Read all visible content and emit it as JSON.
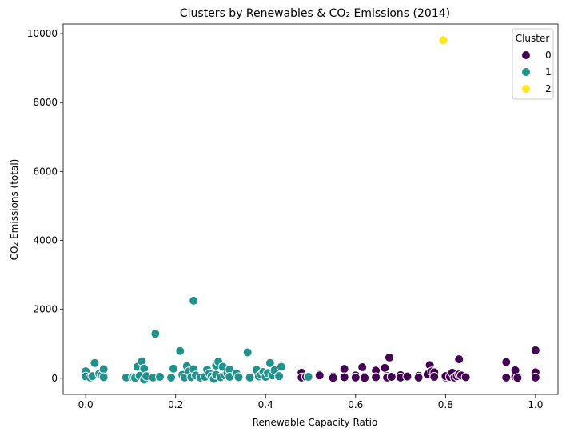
{
  "chart_data": {
    "type": "scatter",
    "title": "Clusters by Renewables & CO₂ Emissions (2014)",
    "xlabel": "Renewable Capacity Ratio",
    "ylabel": "CO₂ Emissions (total)",
    "xlim": [
      -0.05,
      1.05
    ],
    "ylim": [
      -470,
      10280
    ],
    "xticks": [
      0.0,
      0.2,
      0.4,
      0.6,
      0.8,
      1.0
    ],
    "xtick_labels": [
      "0.0",
      "0.2",
      "0.4",
      "0.6",
      "0.8",
      "1.0"
    ],
    "yticks": [
      0,
      2000,
      4000,
      6000,
      8000,
      10000
    ],
    "ytick_labels": [
      "0",
      "2000",
      "4000",
      "6000",
      "8000",
      "10000"
    ],
    "grid": false,
    "legend": {
      "title": "Cluster",
      "placement": "top-right",
      "entries": [
        "0",
        "1",
        "2"
      ]
    },
    "colors": {
      "0": "#440154",
      "1": "#21918c",
      "2": "#fde725"
    },
    "series": [
      {
        "name": "0",
        "points": [
          [
            0.48,
            160
          ],
          [
            0.48,
            20
          ],
          [
            0.49,
            40
          ],
          [
            0.52,
            110
          ],
          [
            0.52,
            80
          ],
          [
            0.55,
            50
          ],
          [
            0.55,
            10
          ],
          [
            0.575,
            270
          ],
          [
            0.575,
            30
          ],
          [
            0.6,
            80
          ],
          [
            0.6,
            20
          ],
          [
            0.615,
            320
          ],
          [
            0.62,
            40
          ],
          [
            0.62,
            10
          ],
          [
            0.645,
            220
          ],
          [
            0.645,
            30
          ],
          [
            0.665,
            300
          ],
          [
            0.67,
            60
          ],
          [
            0.67,
            20
          ],
          [
            0.675,
            600
          ],
          [
            0.68,
            40
          ],
          [
            0.7,
            90
          ],
          [
            0.7,
            20
          ],
          [
            0.715,
            50
          ],
          [
            0.74,
            70
          ],
          [
            0.74,
            20
          ],
          [
            0.76,
            110
          ],
          [
            0.765,
            380
          ],
          [
            0.77,
            200
          ],
          [
            0.775,
            170
          ],
          [
            0.775,
            40
          ],
          [
            0.8,
            20
          ],
          [
            0.8,
            60
          ],
          [
            0.81,
            40
          ],
          [
            0.815,
            160
          ],
          [
            0.82,
            20
          ],
          [
            0.825,
            60
          ],
          [
            0.83,
            550
          ],
          [
            0.83,
            110
          ],
          [
            0.835,
            80
          ],
          [
            0.845,
            30
          ],
          [
            0.935,
            470
          ],
          [
            0.935,
            20
          ],
          [
            0.955,
            40
          ],
          [
            0.955,
            230
          ],
          [
            0.96,
            10
          ],
          [
            1.0,
            810
          ],
          [
            1.0,
            170
          ],
          [
            1.0,
            20
          ]
        ]
      },
      {
        "name": "1",
        "points": [
          [
            0.0,
            200
          ],
          [
            0.0,
            50
          ],
          [
            0.01,
            20
          ],
          [
            0.015,
            60
          ],
          [
            0.02,
            440
          ],
          [
            0.03,
            130
          ],
          [
            0.035,
            80
          ],
          [
            0.04,
            260
          ],
          [
            0.04,
            30
          ],
          [
            0.09,
            20
          ],
          [
            0.105,
            30
          ],
          [
            0.11,
            10
          ],
          [
            0.115,
            330
          ],
          [
            0.12,
            70
          ],
          [
            0.125,
            490
          ],
          [
            0.13,
            280
          ],
          [
            0.13,
            -40
          ],
          [
            0.135,
            60
          ],
          [
            0.15,
            20
          ],
          [
            0.155,
            1290
          ],
          [
            0.165,
            40
          ],
          [
            0.19,
            20
          ],
          [
            0.195,
            280
          ],
          [
            0.21,
            790
          ],
          [
            0.215,
            100
          ],
          [
            0.22,
            20
          ],
          [
            0.225,
            350
          ],
          [
            0.23,
            200
          ],
          [
            0.235,
            30
          ],
          [
            0.24,
            2250
          ],
          [
            0.24,
            260
          ],
          [
            0.245,
            80
          ],
          [
            0.255,
            20
          ],
          [
            0.265,
            40
          ],
          [
            0.27,
            250
          ],
          [
            0.275,
            140
          ],
          [
            0.28,
            50
          ],
          [
            0.285,
            -20
          ],
          [
            0.29,
            370
          ],
          [
            0.29,
            100
          ],
          [
            0.295,
            480
          ],
          [
            0.3,
            30
          ],
          [
            0.305,
            330
          ],
          [
            0.31,
            80
          ],
          [
            0.315,
            150
          ],
          [
            0.32,
            250
          ],
          [
            0.32,
            40
          ],
          [
            0.335,
            140
          ],
          [
            0.34,
            30
          ],
          [
            0.36,
            750
          ],
          [
            0.365,
            20
          ],
          [
            0.38,
            240
          ],
          [
            0.385,
            50
          ],
          [
            0.39,
            100
          ],
          [
            0.395,
            180
          ],
          [
            0.4,
            40
          ],
          [
            0.405,
            150
          ],
          [
            0.41,
            440
          ],
          [
            0.415,
            80
          ],
          [
            0.42,
            230
          ],
          [
            0.43,
            60
          ],
          [
            0.435,
            330
          ],
          [
            0.495,
            40
          ]
        ]
      },
      {
        "name": "2",
        "points": [
          [
            0.795,
            9810
          ]
        ]
      }
    ]
  }
}
